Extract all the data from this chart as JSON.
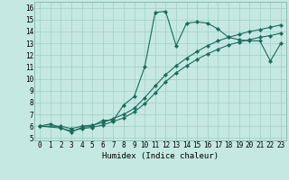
{
  "xlabel": "Humidex (Indice chaleur)",
  "background_color": "#c5e8e2",
  "grid_color": "#9fcec6",
  "line_color": "#1a6b5a",
  "xlim": [
    -0.5,
    23.5
  ],
  "ylim": [
    4.8,
    16.5
  ],
  "xticks": [
    0,
    1,
    2,
    3,
    4,
    5,
    6,
    7,
    8,
    9,
    10,
    11,
    12,
    13,
    14,
    15,
    16,
    17,
    18,
    19,
    20,
    21,
    22,
    23
  ],
  "yticks": [
    5,
    6,
    7,
    8,
    9,
    10,
    11,
    12,
    13,
    14,
    15,
    16
  ],
  "line1_x": [
    0,
    1,
    2,
    3,
    4,
    5,
    6,
    7,
    8,
    9,
    10,
    11,
    12,
    13,
    14,
    15,
    16,
    17,
    18,
    19,
    20,
    21,
    22,
    23
  ],
  "line1_y": [
    6.0,
    6.2,
    5.85,
    5.5,
    5.9,
    6.0,
    6.5,
    6.5,
    7.8,
    8.5,
    11.0,
    15.6,
    15.7,
    12.8,
    14.7,
    14.8,
    14.7,
    14.2,
    13.5,
    13.3,
    13.2,
    13.2,
    11.5,
    13.0
  ],
  "line2_x": [
    0,
    2,
    3,
    4,
    5,
    6,
    7,
    8,
    9,
    10,
    11,
    12,
    13,
    14,
    15,
    16,
    17,
    18,
    19,
    20,
    21,
    22,
    23
  ],
  "line2_y": [
    6.0,
    6.0,
    5.8,
    6.0,
    6.1,
    6.3,
    6.65,
    7.0,
    7.5,
    8.4,
    9.4,
    10.35,
    11.1,
    11.75,
    12.3,
    12.8,
    13.2,
    13.5,
    13.75,
    14.0,
    14.15,
    14.35,
    14.55
  ],
  "line3_x": [
    0,
    2,
    3,
    4,
    5,
    6,
    7,
    8,
    9,
    10,
    11,
    12,
    13,
    14,
    15,
    16,
    17,
    18,
    19,
    20,
    21,
    22,
    23
  ],
  "line3_y": [
    6.0,
    5.85,
    5.6,
    5.8,
    5.9,
    6.1,
    6.4,
    6.7,
    7.2,
    7.9,
    8.8,
    9.75,
    10.5,
    11.1,
    11.65,
    12.1,
    12.5,
    12.85,
    13.1,
    13.3,
    13.5,
    13.65,
    13.85
  ],
  "marker": "D",
  "marker_size": 2.2,
  "linewidth": 0.8,
  "tick_fontsize": 5.5,
  "xlabel_fontsize": 6.5
}
